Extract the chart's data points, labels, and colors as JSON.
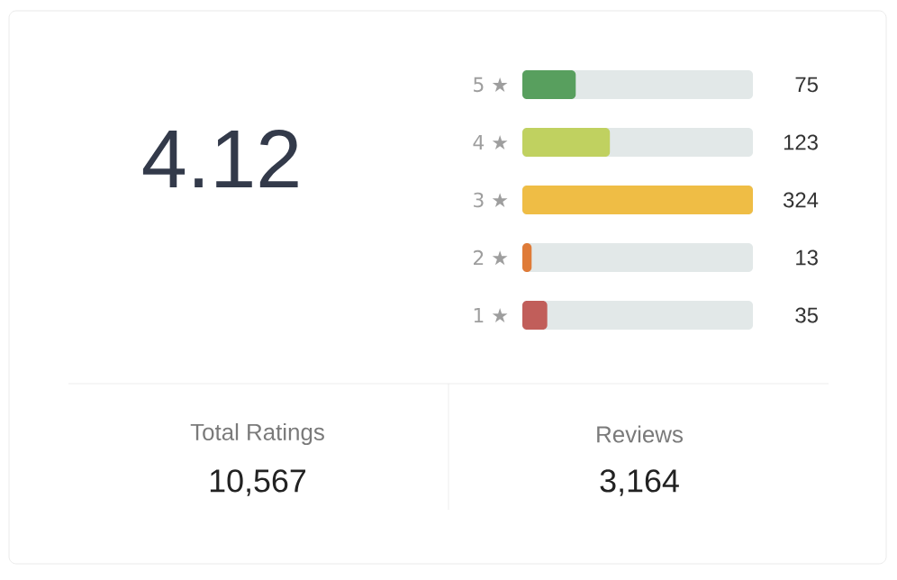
{
  "chart_data": [
    {
      "type": "other",
      "annotations": [
        "4.12",
        "Total Ratings",
        "10,567",
        "Reviews",
        "3,164"
      ]
    },
    {
      "type": "bar",
      "orientation": "horizontal",
      "data_labels": true,
      "categories": [
        "5 ★",
        "4 ★",
        "3 ★",
        "2 ★",
        "1 ★"
      ],
      "series": [
        {
          "colors": [
            "#589f5e",
            "#c0d160",
            "#efbd45",
            "#df7b38",
            "#c15e5a"
          ],
          "values": [
            75,
            123,
            324,
            13,
            35
          ]
        }
      ]
    }
  ]
}
